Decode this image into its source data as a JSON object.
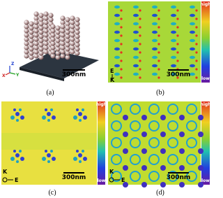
{
  "panels": [
    {
      "caption": "(a)",
      "scale_bar": "300nm",
      "axes": [
        "Z",
        "Y",
        "X"
      ]
    },
    {
      "caption": "(b)",
      "scale_bar": "300nm",
      "colorbar": {
        "high": "high",
        "low": "low"
      },
      "axes": [
        "E",
        "K"
      ]
    },
    {
      "caption": "(c)",
      "scale_bar": "300nm",
      "colorbar": {
        "high": "high",
        "low": "low"
      },
      "axes": [
        "K",
        "E"
      ]
    },
    {
      "caption": "(d)",
      "scale_bar": "300nm",
      "colorbar": {
        "high": "high",
        "low": "low"
      },
      "axes": [
        "K",
        "E"
      ]
    }
  ]
}
